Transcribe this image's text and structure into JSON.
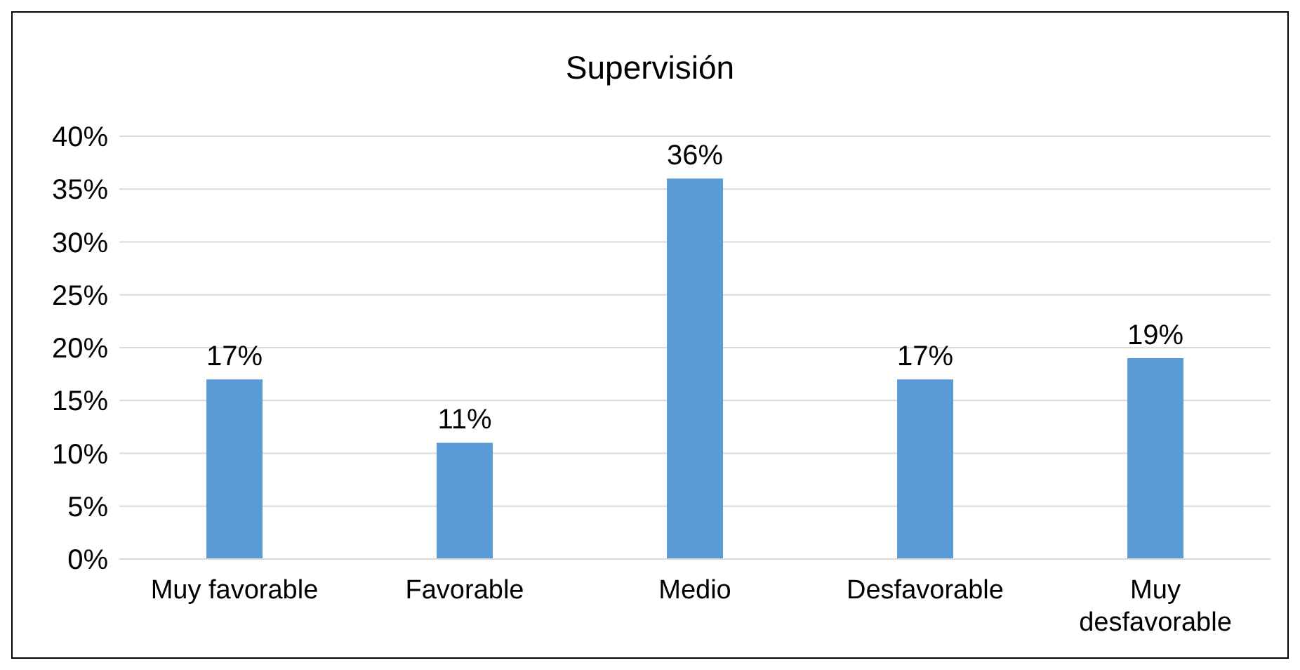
{
  "chart_data": {
    "type": "bar",
    "title": "Supervisión",
    "categories": [
      "Muy favorable",
      "Favorable",
      "Medio",
      "Desfavorable",
      "Muy desfavorable"
    ],
    "values": [
      17,
      11,
      36,
      17,
      19
    ],
    "value_labels": [
      "17%",
      "11%",
      "36%",
      "17%",
      "19%"
    ],
    "color": "#5b9bd5",
    "ylim": [
      0,
      40
    ],
    "yticks": [
      {
        "value": 0,
        "label": "0%"
      },
      {
        "value": 5,
        "label": "5%"
      },
      {
        "value": 10,
        "label": "10%"
      },
      {
        "value": 15,
        "label": "15%"
      },
      {
        "value": 20,
        "label": "20%"
      },
      {
        "value": 25,
        "label": "25%"
      },
      {
        "value": 30,
        "label": "30%"
      },
      {
        "value": 35,
        "label": "35%"
      },
      {
        "value": 40,
        "label": "40%"
      }
    ],
    "grid": "y",
    "legend": false
  }
}
